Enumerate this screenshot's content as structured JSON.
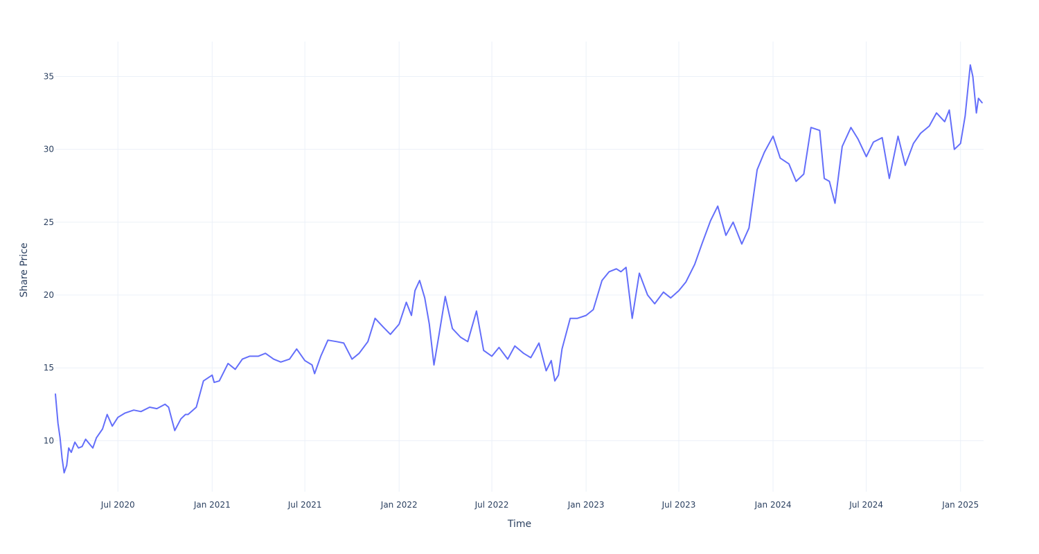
{
  "chart_data": {
    "type": "line",
    "xlabel": "Time",
    "ylabel": "Share Price",
    "xlim": [
      "2020-03-01",
      "2025-02-15"
    ],
    "ylim": [
      6.5,
      37.4
    ],
    "grid": true,
    "line_color": "#636efa",
    "grid_color": "#ebf0f8",
    "text_color": "#2a3f5f",
    "x_ticks": [
      {
        "label": "Jul 2020",
        "date": "2020-07-01"
      },
      {
        "label": "Jan 2021",
        "date": "2021-01-01"
      },
      {
        "label": "Jul 2021",
        "date": "2021-07-01"
      },
      {
        "label": "Jan 2022",
        "date": "2022-01-01"
      },
      {
        "label": "Jul 2022",
        "date": "2022-07-01"
      },
      {
        "label": "Jan 2023",
        "date": "2023-01-01"
      },
      {
        "label": "Jul 2023",
        "date": "2023-07-01"
      },
      {
        "label": "Jan 2024",
        "date": "2024-01-01"
      },
      {
        "label": "Jul 2024",
        "date": "2024-07-01"
      },
      {
        "label": "Jan 2025",
        "date": "2025-01-01"
      }
    ],
    "y_ticks": [
      10,
      15,
      20,
      25,
      30,
      35
    ],
    "series": [
      {
        "x": [
          "2020-03-01",
          "2020-03-06",
          "2020-03-10",
          "2020-03-14",
          "2020-03-18",
          "2020-03-23",
          "2020-03-27",
          "2020-04-01",
          "2020-04-08",
          "2020-04-15",
          "2020-04-22",
          "2020-04-29",
          "2020-05-06",
          "2020-05-13",
          "2020-05-20",
          "2020-06-01",
          "2020-06-10",
          "2020-06-20",
          "2020-07-01",
          "2020-07-15",
          "2020-08-01",
          "2020-08-15",
          "2020-09-01",
          "2020-09-15",
          "2020-10-01",
          "2020-10-08",
          "2020-10-20",
          "2020-11-01",
          "2020-11-10",
          "2020-11-15",
          "2020-12-01",
          "2020-12-15",
          "2021-01-01",
          "2021-01-05",
          "2021-01-15",
          "2021-02-01",
          "2021-02-15",
          "2021-03-01",
          "2021-03-15",
          "2021-04-01",
          "2021-04-15",
          "2021-05-01",
          "2021-05-15",
          "2021-06-01",
          "2021-06-15",
          "2021-07-01",
          "2021-07-15",
          "2021-07-20",
          "2021-08-01",
          "2021-08-15",
          "2021-09-01",
          "2021-09-15",
          "2021-10-01",
          "2021-10-15",
          "2021-11-01",
          "2021-11-15",
          "2021-12-01",
          "2021-12-15",
          "2022-01-01",
          "2022-01-15",
          "2022-01-25",
          "2022-02-01",
          "2022-02-10",
          "2022-02-20",
          "2022-03-01",
          "2022-03-10",
          "2022-03-20",
          "2022-04-01",
          "2022-04-15",
          "2022-05-01",
          "2022-05-15",
          "2022-06-01",
          "2022-06-15",
          "2022-07-01",
          "2022-07-15",
          "2022-08-01",
          "2022-08-15",
          "2022-09-01",
          "2022-09-15",
          "2022-10-01",
          "2022-10-15",
          "2022-10-25",
          "2022-11-01",
          "2022-11-08",
          "2022-11-15",
          "2022-12-01",
          "2022-12-15",
          "2023-01-01",
          "2023-01-15",
          "2023-02-01",
          "2023-02-15",
          "2023-03-01",
          "2023-03-10",
          "2023-03-20",
          "2023-04-01",
          "2023-04-15",
          "2023-05-01",
          "2023-05-15",
          "2023-06-01",
          "2023-06-15",
          "2023-07-01",
          "2023-07-15",
          "2023-08-01",
          "2023-08-15",
          "2023-09-01",
          "2023-09-15",
          "2023-10-01",
          "2023-10-15",
          "2023-11-01",
          "2023-11-15",
          "2023-12-01",
          "2023-12-15",
          "2024-01-01",
          "2024-01-15",
          "2024-02-01",
          "2024-02-15",
          "2024-03-01",
          "2024-03-15",
          "2024-04-01",
          "2024-04-10",
          "2024-04-20",
          "2024-05-01",
          "2024-05-15",
          "2024-06-01",
          "2024-06-15",
          "2024-07-01",
          "2024-07-15",
          "2024-08-01",
          "2024-08-15",
          "2024-09-01",
          "2024-09-15",
          "2024-10-01",
          "2024-10-15",
          "2024-11-01",
          "2024-11-15",
          "2024-12-01",
          "2024-12-10",
          "2024-12-20",
          "2025-01-01",
          "2025-01-10",
          "2025-01-20",
          "2025-01-25",
          "2025-02-01",
          "2025-02-05",
          "2025-02-12"
        ],
        "y": [
          13.2,
          11.2,
          10.2,
          8.8,
          7.8,
          8.3,
          9.5,
          9.2,
          9.9,
          9.5,
          9.6,
          10.1,
          9.8,
          9.5,
          10.2,
          10.8,
          11.8,
          11.0,
          11.6,
          11.9,
          12.1,
          12.0,
          12.3,
          12.2,
          12.5,
          12.3,
          10.7,
          11.5,
          11.8,
          11.8,
          12.3,
          14.1,
          14.5,
          14.0,
          14.1,
          15.3,
          14.9,
          15.6,
          15.8,
          15.8,
          16.0,
          15.6,
          15.4,
          15.6,
          16.3,
          15.5,
          15.2,
          14.6,
          15.8,
          16.9,
          16.8,
          16.7,
          15.6,
          16.0,
          16.8,
          18.4,
          17.8,
          17.3,
          18.0,
          19.5,
          18.6,
          20.3,
          21.0,
          19.8,
          18.0,
          15.2,
          17.3,
          19.9,
          17.7,
          17.1,
          16.8,
          18.9,
          16.2,
          15.8,
          16.4,
          15.6,
          16.5,
          16.0,
          15.7,
          16.7,
          14.8,
          15.5,
          14.1,
          14.5,
          16.3,
          18.4,
          18.4,
          18.6,
          19.0,
          21.0,
          21.6,
          21.8,
          21.6,
          21.9,
          18.4,
          21.5,
          20.0,
          19.4,
          20.2,
          19.8,
          20.3,
          20.9,
          22.1,
          23.5,
          25.1,
          26.1,
          24.1,
          25.0,
          23.5,
          24.6,
          28.6,
          29.8,
          30.9,
          29.4,
          29.0,
          27.8,
          28.3,
          31.5,
          31.3,
          28.0,
          27.8,
          26.3,
          30.2,
          31.5,
          30.7,
          29.5,
          30.5,
          30.8,
          28.0,
          30.9,
          28.9,
          30.4,
          31.1,
          31.6,
          32.5,
          31.9,
          32.7,
          30.0,
          30.4,
          32.3,
          35.8,
          35.0,
          32.5,
          33.5,
          33.2
        ]
      }
    ]
  }
}
